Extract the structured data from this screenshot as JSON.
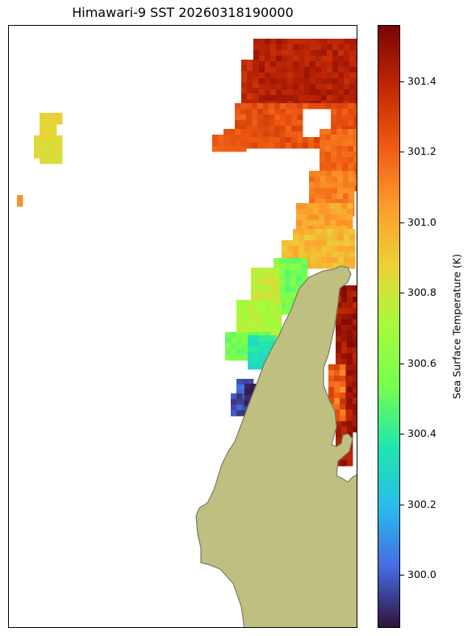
{
  "title": "Himawari-9 SST 20260318190000",
  "colorbar": {
    "label": "Sea Surface Temperature (K)",
    "min": 299.85,
    "max": 301.56,
    "ticks": [
      "300.0",
      "300.2",
      "300.4",
      "300.6",
      "300.8",
      "301.0",
      "301.2",
      "301.4"
    ],
    "colormap": "turbo"
  },
  "colors": {
    "land": "#bfbf82",
    "coastline": "#7a7a5c"
  },
  "chart_data": {
    "type": "heatmap",
    "title": "Himawari-9 SST 20260318190000",
    "value_label": "Sea Surface Temperature (K)",
    "value_range": [
      299.85,
      301.56
    ],
    "colormap": "turbo",
    "cells_note_units": "K",
    "regions": [
      {
        "area": "northeast block",
        "approx_value": 301.4
      },
      {
        "area": "northeast center",
        "approx_value": 301.25
      },
      {
        "area": "east mid",
        "approx_value": 301.15
      },
      {
        "area": "east near cape",
        "approx_value": 301.0
      },
      {
        "area": "west of cape",
        "approx_value": 300.7
      },
      {
        "area": "inner gulf",
        "approx_value": 300.3
      },
      {
        "area": "inner gulf south",
        "approx_value": 300.0
      },
      {
        "area": "east coast strip",
        "approx_value": 301.45
      },
      {
        "area": "northwest patch",
        "approx_value": 300.85
      },
      {
        "area": "far west pixel",
        "approx_value": 301.1
      }
    ]
  }
}
